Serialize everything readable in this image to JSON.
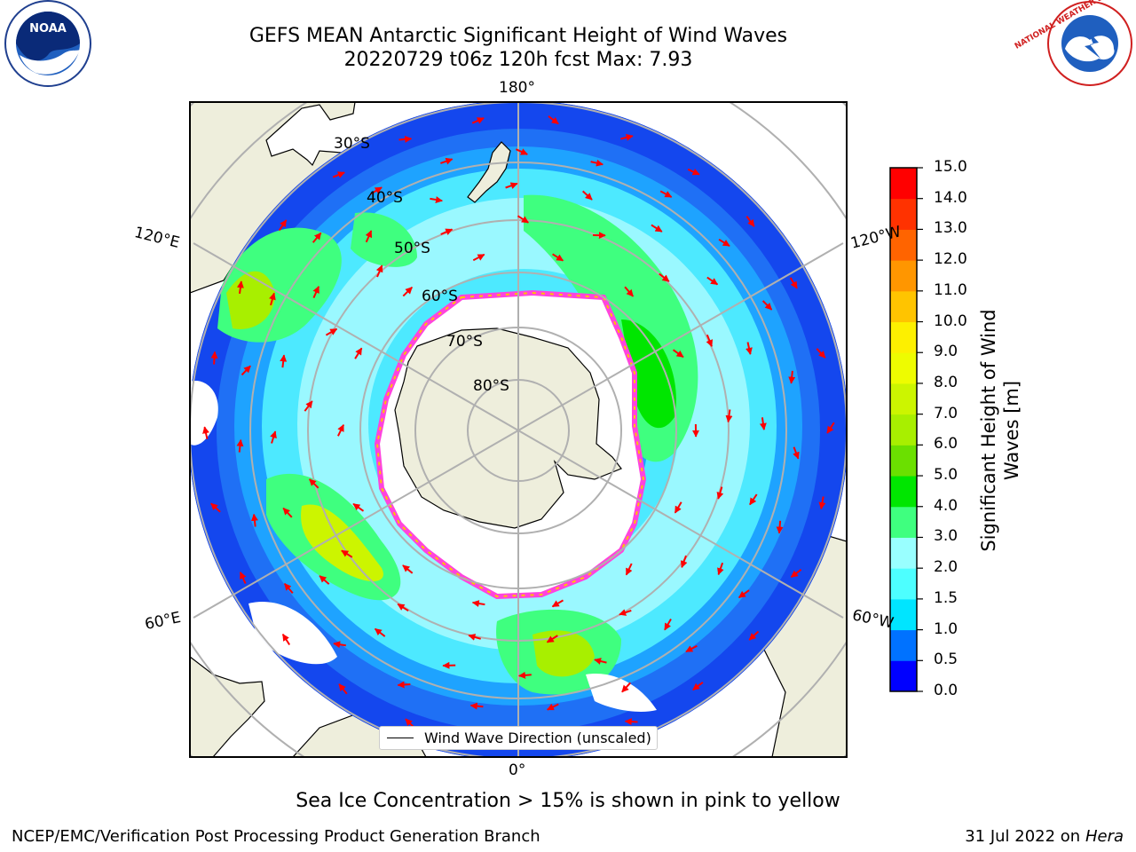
{
  "header": {
    "title_line1": "GEFS MEAN Antarctic Significant Height of Wind Waves",
    "title_line2": "20220729 t06z 120h fcst   Max: 7.93"
  },
  "logos": {
    "left": "NOAA",
    "right": "NATIONAL WEATHER SERVICE"
  },
  "map": {
    "projection": "south polar stereographic",
    "longitude_labels": [
      "180°",
      "120°E",
      "120°W",
      "60°E",
      "60°W",
      "0°"
    ],
    "latitude_labels": [
      "30°S",
      "40°S",
      "50°S",
      "60°S",
      "70°S",
      "80°S"
    ],
    "colors": {
      "land": "#eeeedc",
      "ocean_deep": "#1447ee",
      "ice_edge": "#ff44dd"
    },
    "legend": "Wind Wave Direction (unscaled)"
  },
  "colorbar": {
    "label_line1": "Significant Height of Wind",
    "label_line2": "Waves [m]",
    "ticks": [
      "15.0",
      "14.0",
      "13.0",
      "12.0",
      "11.0",
      "10.0",
      "9.0",
      "8.0",
      "7.0",
      "6.0",
      "5.0",
      "4.0",
      "3.0",
      "2.0",
      "1.5",
      "1.0",
      "0.5",
      "0.0"
    ],
    "colors": [
      "#0000ff",
      "#0072ff",
      "#00e5ff",
      "#4dffff",
      "#99ffff",
      "#3fff7f",
      "#00e600",
      "#6be000",
      "#a8ef00",
      "#ccf500",
      "#eefc00",
      "#fdf000",
      "#ffc400",
      "#ff9600",
      "#ff6400",
      "#ff3200",
      "#ff0000"
    ]
  },
  "notes": {
    "sea_ice": "Sea Ice Concentration > 15% is shown in pink to yellow",
    "credit": "NCEP/EMC/Verification Post Processing Product Generation Branch",
    "date": "31 Jul 2022 on ",
    "host": "Hera"
  }
}
